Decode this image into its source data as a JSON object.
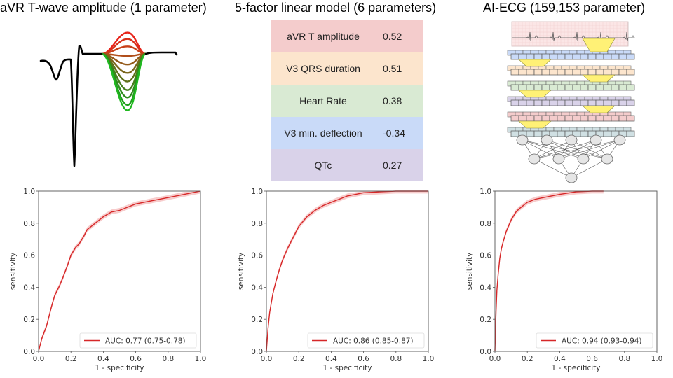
{
  "panels": [
    {
      "title": "aVR T-wave amplitude (1 parameter)",
      "illustration": "ecg-t-wave-variation"
    },
    {
      "title": "5-factor linear model (6 parameters)",
      "illustration": "coefficient-table"
    },
    {
      "title": "AI-ECG (159,153 parameter)",
      "illustration": "cnn-architecture"
    }
  ],
  "twave": {
    "baseline_color": "#000000",
    "variant_colors": [
      "#e8231a",
      "#d8301a",
      "#c8401a",
      "#b04e1a",
      "#945a1a",
      "#7a661c",
      "#60721c",
      "#467e1c",
      "#2e8c1c",
      "#1e9e1c",
      "#20b820"
    ],
    "variant_amplitudes": [
      1.0,
      0.7,
      0.35,
      -0.1,
      -0.5,
      -0.9,
      -1.3,
      -1.7,
      -2.05,
      -2.4,
      -2.65
    ]
  },
  "table": {
    "rows": [
      {
        "name": "aVR T amplitude",
        "value": "0.52",
        "color": "#f4cccc"
      },
      {
        "name": "V3 QRS duration",
        "value": "0.51",
        "color": "#fce5cd"
      },
      {
        "name": "Heart Rate",
        "value": "0.38",
        "color": "#d9ead3"
      },
      {
        "name": "V3 min. deflection",
        "value": "-0.34",
        "color": "#c9daf8"
      },
      {
        "name": "QTc",
        "value": "0.27",
        "color": "#d9d2e9"
      }
    ]
  },
  "cnn": {
    "layer_colors": [
      "#c9daf8",
      "#fce5cd",
      "#d9ead3",
      "#d9d2e9",
      "#f4cccc",
      "#d0e0e3"
    ],
    "filter_color": "#fff176",
    "ecg_bg": "#fbe6e6",
    "node_counts": [
      5,
      4,
      1
    ]
  },
  "chart_data": [
    {
      "type": "line",
      "title": "aVR T-wave amplitude (1 parameter)",
      "xlabel": "1 - specificity",
      "ylabel": "sensitivity",
      "xlim": [
        0,
        1
      ],
      "ylim": [
        0,
        1
      ],
      "xticks": [
        "0.0",
        "0.2",
        "0.4",
        "0.6",
        "0.8",
        "1.0"
      ],
      "yticks": [
        "0.0",
        "0.2",
        "0.4",
        "0.6",
        "0.8",
        "1.0"
      ],
      "grid": false,
      "legend_position": "lower-right",
      "series": [
        {
          "name": "AUC: 0.77 (0.75-0.78)",
          "color": "#d62728",
          "band_color": "#f4b6b6",
          "x": [
            0,
            0.02,
            0.05,
            0.08,
            0.1,
            0.13,
            0.15,
            0.18,
            0.2,
            0.23,
            0.25,
            0.28,
            0.3,
            0.35,
            0.4,
            0.45,
            0.5,
            0.55,
            0.6,
            0.7,
            0.8,
            0.9,
            1.0
          ],
          "y": [
            0,
            0.08,
            0.16,
            0.28,
            0.35,
            0.41,
            0.46,
            0.54,
            0.6,
            0.65,
            0.67,
            0.72,
            0.76,
            0.8,
            0.84,
            0.87,
            0.88,
            0.9,
            0.92,
            0.94,
            0.96,
            0.98,
            1.0
          ]
        }
      ]
    },
    {
      "type": "line",
      "title": "5-factor linear model (6 parameters)",
      "xlabel": "1 - specificity",
      "ylabel": "sensitivity",
      "xlim": [
        0,
        1
      ],
      "ylim": [
        0,
        1
      ],
      "xticks": [
        "0.0",
        "0.2",
        "0.4",
        "0.6",
        "0.8",
        "1.0"
      ],
      "yticks": [
        "0.0",
        "0.2",
        "0.4",
        "0.6",
        "0.8",
        "1.0"
      ],
      "grid": false,
      "legend_position": "lower-right",
      "series": [
        {
          "name": "AUC: 0.86 (0.85-0.87)",
          "color": "#d62728",
          "band_color": "#f4b6b6",
          "x": [
            0,
            0.01,
            0.02,
            0.04,
            0.06,
            0.08,
            0.1,
            0.13,
            0.15,
            0.18,
            0.2,
            0.25,
            0.3,
            0.35,
            0.4,
            0.45,
            0.5,
            0.6,
            0.7,
            0.8,
            1.0
          ],
          "y": [
            0,
            0.14,
            0.24,
            0.36,
            0.44,
            0.51,
            0.57,
            0.64,
            0.68,
            0.74,
            0.78,
            0.84,
            0.88,
            0.91,
            0.93,
            0.95,
            0.97,
            0.99,
            0.995,
            1.0,
            1.0
          ]
        }
      ]
    },
    {
      "type": "line",
      "title": "AI-ECG (159,153 parameter)",
      "xlabel": "1 - specificity",
      "ylabel": "sensitivity",
      "xlim": [
        0,
        1
      ],
      "ylim": [
        0,
        1
      ],
      "xticks": [
        "0.0",
        "0.2",
        "0.4",
        "0.6",
        "0.8",
        "1.0"
      ],
      "yticks": [
        "0.0",
        "0.2",
        "0.4",
        "0.6",
        "0.8",
        "1.0"
      ],
      "grid": false,
      "legend_position": "lower-right",
      "series": [
        {
          "name": "AUC: 0.94 (0.93-0.94)",
          "color": "#d62728",
          "band_color": "#f4b6b6",
          "x": [
            0,
            0.003,
            0.007,
            0.012,
            0.02,
            0.03,
            0.04,
            0.05,
            0.07,
            0.1,
            0.13,
            0.15,
            0.2,
            0.25,
            0.3,
            0.4,
            0.5,
            0.6,
            0.67
          ],
          "y": [
            0,
            0.12,
            0.25,
            0.38,
            0.48,
            0.58,
            0.64,
            0.68,
            0.75,
            0.82,
            0.87,
            0.89,
            0.93,
            0.95,
            0.96,
            0.98,
            0.995,
            1.0,
            1.0
          ]
        }
      ]
    }
  ]
}
